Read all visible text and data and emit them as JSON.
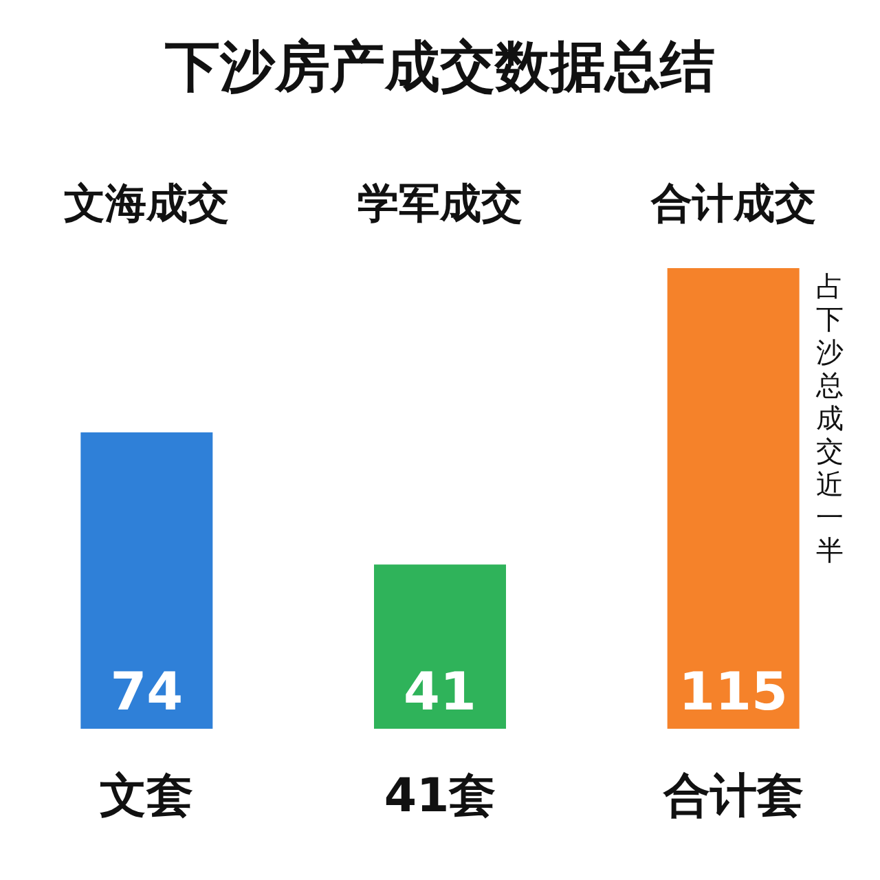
{
  "chart_data": {
    "type": "bar",
    "title": "下沙房产成交数据总结",
    "categories": [
      "文海成交",
      "学军成交",
      "合计成交"
    ],
    "values": [
      74,
      41,
      115
    ],
    "colors": [
      "#2f80d8",
      "#2fb35a",
      "#f5822a"
    ],
    "data_labels": true,
    "annotations": [
      "文套",
      "41套",
      "合计套",
      "占下沙总成交近一半"
    ]
  }
}
